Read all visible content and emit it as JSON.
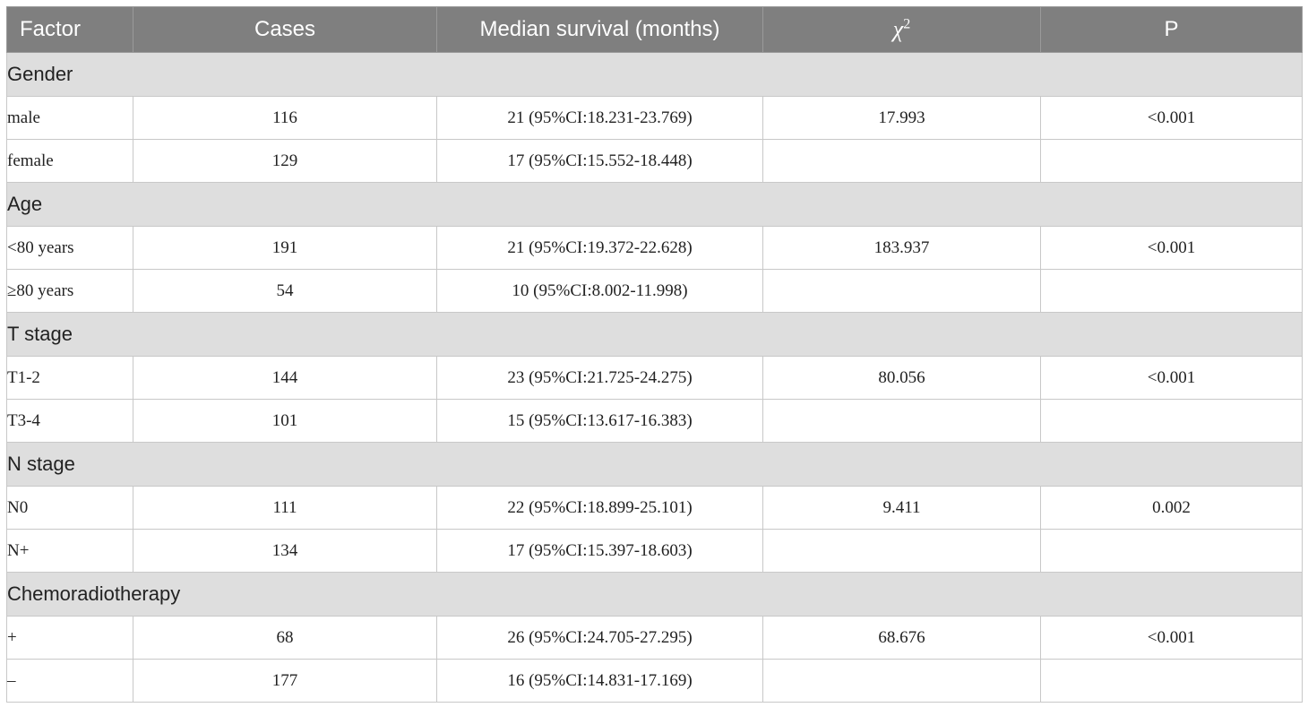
{
  "table": {
    "headers": [
      "Factor",
      "Cases",
      "Median survival (months)",
      "χ",
      "P"
    ],
    "chi_sup": "2",
    "groups": [
      {
        "name": "Gender",
        "rows": [
          {
            "factor": "male",
            "cases": "116",
            "median": "21 (95%CI:18.231-23.769)",
            "chi2": "17.993",
            "p": "<0.001"
          },
          {
            "factor": "female",
            "cases": "129",
            "median": "17 (95%CI:15.552-18.448)",
            "chi2": "",
            "p": ""
          }
        ]
      },
      {
        "name": "Age",
        "rows": [
          {
            "factor": "<80 years",
            "cases": "191",
            "median": "21 (95%CI:19.372-22.628)",
            "chi2": "183.937",
            "p": "<0.001"
          },
          {
            "factor": "≥80 years",
            "cases": "54",
            "median": "10 (95%CI:8.002-11.998)",
            "chi2": "",
            "p": ""
          }
        ]
      },
      {
        "name": "T stage",
        "rows": [
          {
            "factor": "T1-2",
            "cases": "144",
            "median": "23 (95%CI:21.725-24.275)",
            "chi2": "80.056",
            "p": "<0.001"
          },
          {
            "factor": "T3-4",
            "cases": "101",
            "median": "15 (95%CI:13.617-16.383)",
            "chi2": "",
            "p": ""
          }
        ]
      },
      {
        "name": "N stage",
        "rows": [
          {
            "factor": "N0",
            "cases": "111",
            "median": "22 (95%CI:18.899-25.101)",
            "chi2": "9.411",
            "p": "0.002"
          },
          {
            "factor": "N+",
            "cases": "134",
            "median": "17 (95%CI:15.397-18.603)",
            "chi2": "",
            "p": ""
          }
        ]
      },
      {
        "name": "Chemoradiotherapy",
        "rows": [
          {
            "factor": "+",
            "cases": "68",
            "median": "26 (95%CI:24.705-27.295)",
            "chi2": "68.676",
            "p": "<0.001"
          },
          {
            "factor": "–",
            "cases": "177",
            "median": "16 (95%CI:14.831-17.169)",
            "chi2": "",
            "p": ""
          }
        ]
      }
    ]
  }
}
